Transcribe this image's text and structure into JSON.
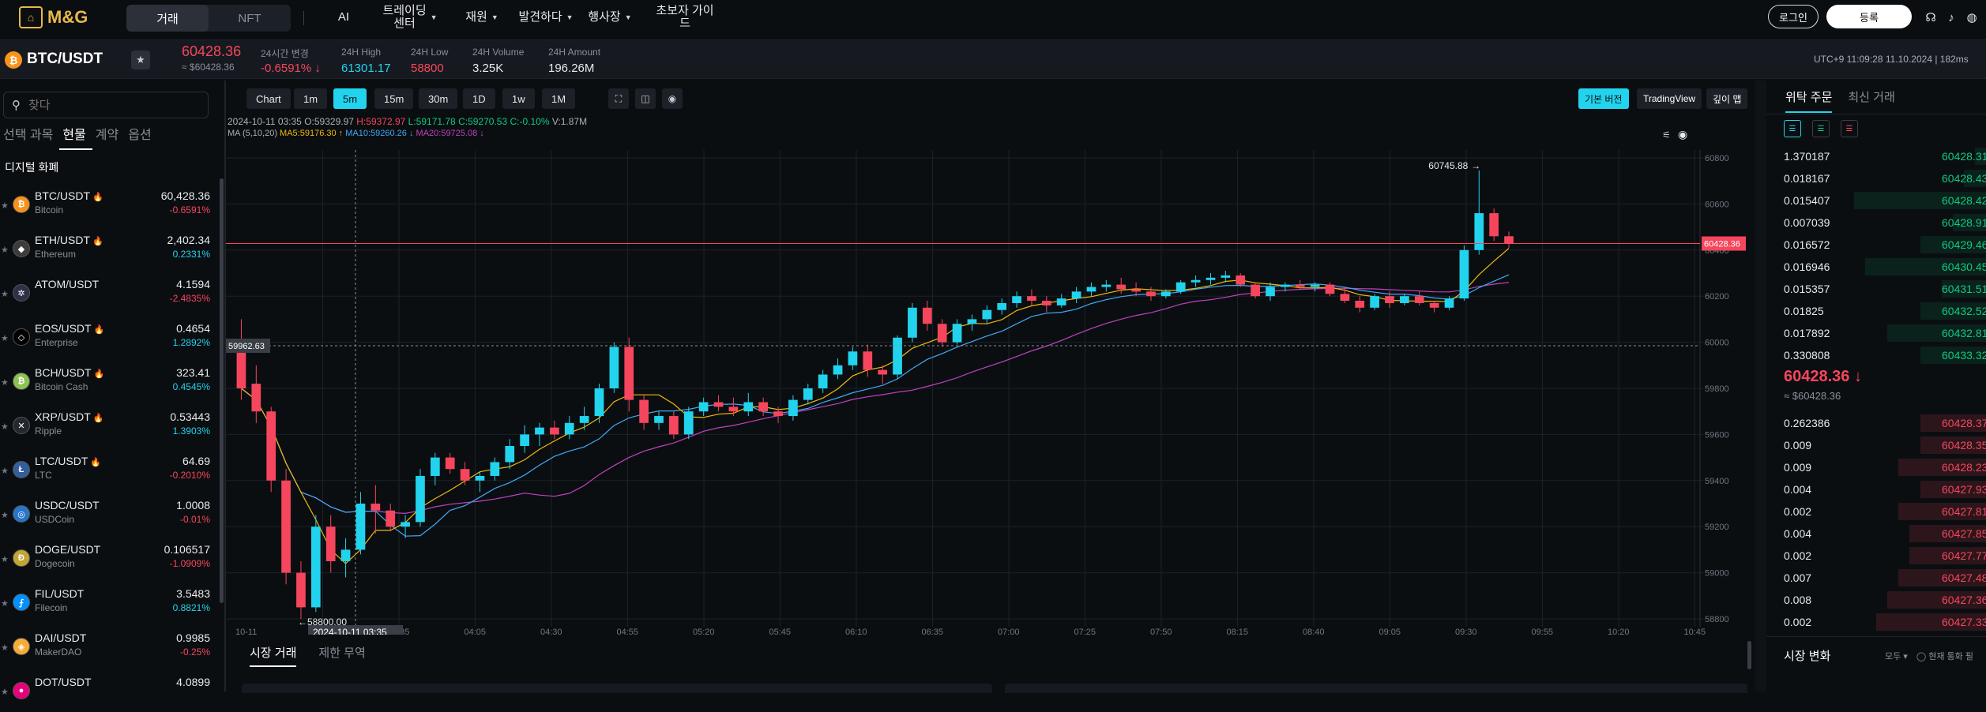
{
  "brand": {
    "name": "M&G"
  },
  "topnav": {
    "mode_tabs": [
      {
        "label": "거래"
      },
      {
        "label": "NFT"
      }
    ],
    "items": [
      {
        "label": "AI"
      },
      {
        "label": "트레이딩\n센터"
      },
      {
        "label": "재원"
      },
      {
        "label": "발견하다"
      },
      {
        "label": "행사장"
      },
      {
        "label": "초보자 가이\n드"
      }
    ],
    "login": "로그인",
    "register": "등록"
  },
  "ticker": {
    "pair": "BTC/USDT",
    "price": "60428.36",
    "price_usd": "≈ $60428.36",
    "stats": [
      {
        "label": "24시간 변경",
        "value": "-0.6591% ↓"
      },
      {
        "label": "24H High",
        "value": "61301.17"
      },
      {
        "label": "24H Low",
        "value": "58800"
      },
      {
        "label": "24H Volume",
        "value": "3.25K"
      },
      {
        "label": "24H Amount",
        "value": "196.26M"
      }
    ],
    "clock": "UTC+9 11:09:28 11.10.2024 | 182ms"
  },
  "sidebar": {
    "search_placeholder": "찾다",
    "tabs": [
      {
        "label": "선택 과목"
      },
      {
        "label": "현물"
      },
      {
        "label": "계약"
      },
      {
        "label": "옵션"
      }
    ],
    "section_title": "디지털 화폐",
    "coins": [
      {
        "pair": "BTC/USDT",
        "hot": true,
        "name": "Bitcoin",
        "price": "60,428.36",
        "change": "-0.6591%",
        "dir": "down",
        "color": "#f7931a",
        "glyph": "₿"
      },
      {
        "pair": "ETH/USDT",
        "hot": true,
        "name": "Ethereum",
        "price": "2,402.34",
        "change": "0.2331%",
        "dir": "up",
        "color": "#3c3c3d",
        "glyph": "◆"
      },
      {
        "pair": "ATOM/USDT",
        "hot": false,
        "name": "",
        "price": "4.1594",
        "change": "-2.4835%",
        "dir": "down",
        "color": "#2e3148",
        "glyph": "✲"
      },
      {
        "pair": "EOS/USDT",
        "hot": true,
        "name": "Enterprise",
        "price": "0.4654",
        "change": "1.2892%",
        "dir": "up",
        "color": "#000000",
        "glyph": "◇"
      },
      {
        "pair": "BCH/USDT",
        "hot": true,
        "name": "Bitcoin Cash",
        "price": "323.41",
        "change": "0.4545%",
        "dir": "up",
        "color": "#8dc351",
        "glyph": "₿"
      },
      {
        "pair": "XRP/USDT",
        "hot": true,
        "name": "Ripple",
        "price": "0.53443",
        "change": "1.3903%",
        "dir": "up",
        "color": "#23292f",
        "glyph": "✕"
      },
      {
        "pair": "LTC/USDT",
        "hot": true,
        "name": "LTC",
        "price": "64.69",
        "change": "-0.2010%",
        "dir": "down",
        "color": "#345d9d",
        "glyph": "Ł"
      },
      {
        "pair": "USDC/USDT",
        "hot": false,
        "name": "USDCoin",
        "price": "1.0008",
        "change": "-0.01%",
        "dir": "down",
        "color": "#2775ca",
        "glyph": "◎"
      },
      {
        "pair": "DOGE/USDT",
        "hot": false,
        "name": "Dogecoin",
        "price": "0.106517",
        "change": "-1.0909%",
        "dir": "down",
        "color": "#c2a633",
        "glyph": "Ð"
      },
      {
        "pair": "FIL/USDT",
        "hot": false,
        "name": "Filecoin",
        "price": "3.5483",
        "change": "0.8821%",
        "dir": "up",
        "color": "#0090ff",
        "glyph": "⨍"
      },
      {
        "pair": "DAI/USDT",
        "hot": false,
        "name": "MakerDAO",
        "price": "0.9985",
        "change": "-0.25%",
        "dir": "down",
        "color": "#f5ac37",
        "glyph": "◈"
      },
      {
        "pair": "DOT/USDT",
        "hot": false,
        "name": "",
        "price": "4.0899",
        "change": "",
        "dir": "down",
        "color": "#e6007a",
        "glyph": "●"
      }
    ]
  },
  "chart": {
    "toolbar": [
      {
        "label": "Chart"
      },
      {
        "label": "1m"
      },
      {
        "label": "5m",
        "active": true
      },
      {
        "label": "15m"
      },
      {
        "label": "30m"
      },
      {
        "label": "1D"
      },
      {
        "label": "1w"
      },
      {
        "label": "1M"
      }
    ],
    "right_tools": [
      {
        "label": "기본 버전",
        "active": true
      },
      {
        "label": "TradingView"
      },
      {
        "label": "깊이 맵"
      }
    ],
    "ohlc_legend": {
      "date": "2024-10-11 03:35",
      "o": "O:59329.97",
      "h": "H:59372.97",
      "l": "L:59171.78",
      "c": "C:59270.53",
      "chg": "C:-0.10%",
      "v": "V:1.87M"
    },
    "ma_legend": {
      "label": "MA (5,10,20)",
      "ma5": "MA5:59176.30 ↑",
      "ma10": "MA10:59260.26 ↓",
      "ma20": "MA20:59725.08 ↓"
    },
    "crosshair": {
      "price": "59962.63",
      "time": "2024-10-11  03:35"
    },
    "high_marker": "60745.88",
    "low_marker": "58800.00",
    "last_price_tag": "60428.36",
    "bottom_tabs": [
      {
        "label": "시장 거래"
      },
      {
        "label": "제한 무역"
      }
    ]
  },
  "chart_data": {
    "type": "candlestick",
    "title": "",
    "ylim": [
      58800,
      60800
    ],
    "y_ticks": [
      60800,
      60600,
      60400,
      60200,
      60000,
      59800,
      59600,
      59400,
      59200,
      59000,
      58800
    ],
    "x_ticks": [
      "10-11",
      "03:10",
      "03:35",
      "04:05",
      "04:30",
      "04:55",
      "05:20",
      "05:45",
      "06:10",
      "06:35",
      "07:00",
      "07:25",
      "07:50",
      "08:15",
      "08:40",
      "09:05",
      "09:30",
      "09:55",
      "10:20",
      "10:45"
    ],
    "candles": [
      [
        60000,
        60100,
        59750,
        59800
      ],
      [
        59820,
        59900,
        59650,
        59700
      ],
      [
        59700,
        59720,
        59350,
        59400
      ],
      [
        59400,
        59450,
        58950,
        59000
      ],
      [
        59000,
        59050,
        58800,
        58850
      ],
      [
        58850,
        59250,
        58830,
        59200
      ],
      [
        59200,
        59250,
        59000,
        59050
      ],
      [
        59050,
        59150,
        58980,
        59100
      ],
      [
        59100,
        59350,
        59080,
        59300
      ],
      [
        59300,
        59380,
        59170,
        59270
      ],
      [
        59270,
        59300,
        59180,
        59200
      ],
      [
        59200,
        59250,
        59150,
        59220
      ],
      [
        59220,
        59450,
        59200,
        59420
      ],
      [
        59420,
        59520,
        59380,
        59500
      ],
      [
        59500,
        59520,
        59430,
        59450
      ],
      [
        59450,
        59480,
        59380,
        59400
      ],
      [
        59400,
        59440,
        59350,
        59420
      ],
      [
        59420,
        59500,
        59400,
        59480
      ],
      [
        59480,
        59580,
        59450,
        59550
      ],
      [
        59550,
        59640,
        59520,
        59600
      ],
      [
        59600,
        59650,
        59550,
        59630
      ],
      [
        59630,
        59660,
        59580,
        59600
      ],
      [
        59600,
        59680,
        59580,
        59650
      ],
      [
        59650,
        59720,
        59620,
        59680
      ],
      [
        59680,
        59820,
        59650,
        59800
      ],
      [
        59800,
        60000,
        59780,
        59980
      ],
      [
        59980,
        60020,
        59700,
        59750
      ],
      [
        59750,
        59770,
        59620,
        59650
      ],
      [
        59650,
        59700,
        59620,
        59680
      ],
      [
        59680,
        59700,
        59580,
        59600
      ],
      [
        59600,
        59720,
        59580,
        59700
      ],
      [
        59700,
        59760,
        59680,
        59740
      ],
      [
        59740,
        59770,
        59700,
        59720
      ],
      [
        59720,
        59760,
        59680,
        59700
      ],
      [
        59700,
        59780,
        59680,
        59740
      ],
      [
        59740,
        59760,
        59680,
        59700
      ],
      [
        59700,
        59720,
        59650,
        59680
      ],
      [
        59680,
        59770,
        59660,
        59750
      ],
      [
        59750,
        59820,
        59730,
        59800
      ],
      [
        59800,
        59880,
        59780,
        59860
      ],
      [
        59860,
        59930,
        59840,
        59900
      ],
      [
        59900,
        59980,
        59880,
        59960
      ],
      [
        59960,
        59990,
        59850,
        59880
      ],
      [
        59880,
        59900,
        59820,
        59860
      ],
      [
        59860,
        60030,
        59840,
        60020
      ],
      [
        60020,
        60170,
        60000,
        60150
      ],
      [
        60150,
        60180,
        60050,
        60080
      ],
      [
        60080,
        60100,
        59980,
        60000
      ],
      [
        60000,
        60100,
        59990,
        60080
      ],
      [
        60080,
        60120,
        60050,
        60100
      ],
      [
        60100,
        60160,
        60080,
        60140
      ],
      [
        60140,
        60190,
        60120,
        60170
      ],
      [
        60170,
        60220,
        60150,
        60200
      ],
      [
        60200,
        60230,
        60160,
        60180
      ],
      [
        60180,
        60200,
        60130,
        60160
      ],
      [
        60160,
        60210,
        60150,
        60190
      ],
      [
        60190,
        60240,
        60170,
        60220
      ],
      [
        60220,
        60260,
        60200,
        60240
      ],
      [
        60240,
        60270,
        60220,
        60250
      ],
      [
        60250,
        60280,
        60210,
        60230
      ],
      [
        60230,
        60260,
        60200,
        60220
      ],
      [
        60220,
        60240,
        60180,
        60200
      ],
      [
        60200,
        60230,
        60190,
        60220
      ],
      [
        60220,
        60270,
        60210,
        60260
      ],
      [
        60260,
        60290,
        60240,
        60270
      ],
      [
        60270,
        60300,
        60250,
        60280
      ],
      [
        60280,
        60310,
        60260,
        60290
      ],
      [
        60290,
        60300,
        60240,
        60250
      ],
      [
        60250,
        60260,
        60190,
        60200
      ],
      [
        60200,
        60260,
        60180,
        60240
      ],
      [
        60240,
        60260,
        60220,
        60250
      ],
      [
        60250,
        60270,
        60230,
        60240
      ],
      [
        60240,
        60260,
        60220,
        60250
      ],
      [
        60250,
        60260,
        60200,
        60210
      ],
      [
        60210,
        60240,
        60170,
        60180
      ],
      [
        60180,
        60200,
        60130,
        60150
      ],
      [
        60150,
        60210,
        60140,
        60200
      ],
      [
        60200,
        60220,
        60150,
        60170
      ],
      [
        60170,
        60210,
        60160,
        60200
      ],
      [
        60200,
        60220,
        60160,
        60170
      ],
      [
        60170,
        60180,
        60130,
        60150
      ],
      [
        60150,
        60200,
        60140,
        60190
      ],
      [
        60190,
        60420,
        60180,
        60400
      ],
      [
        60400,
        60746,
        60380,
        60560
      ],
      [
        60560,
        60580,
        60440,
        60460
      ],
      [
        60460,
        60480,
        60410,
        60428.36
      ]
    ]
  },
  "orderbook": {
    "tabs": [
      {
        "label": "위탁 주문"
      },
      {
        "label": "최신 거래"
      }
    ],
    "asks": [
      {
        "qty": "1.370187",
        "price": "60428.31",
        "depth": 0.05
      },
      {
        "qty": "0.018167",
        "price": "60428.43",
        "depth": 0.1
      },
      {
        "qty": "0.015407",
        "price": "60428.42",
        "depth": 0.6
      },
      {
        "qty": "0.007039",
        "price": "60428.91",
        "depth": 0.15
      },
      {
        "qty": "0.016572",
        "price": "60429.46",
        "depth": 0.3
      },
      {
        "qty": "0.016946",
        "price": "60430.45",
        "depth": 0.55
      },
      {
        "qty": "0.015357",
        "price": "60431.51",
        "depth": 0.2
      },
      {
        "qty": "0.01825",
        "price": "60432.52",
        "depth": 0.3
      },
      {
        "qty": "0.017892",
        "price": "60432.81",
        "depth": 0.45
      },
      {
        "qty": "0.330808",
        "price": "60433.32",
        "depth": 0.3
      }
    ],
    "mid_price": "60428.36 ↓",
    "mid_usd": "≈ $60428.36",
    "bids": [
      {
        "qty": "0.262386",
        "price": "60428.37",
        "depth": 0.3
      },
      {
        "qty": "0.009",
        "price": "60428.35",
        "depth": 0.3
      },
      {
        "qty": "0.009",
        "price": "60428.23",
        "depth": 0.4
      },
      {
        "qty": "0.004",
        "price": "60427.93",
        "depth": 0.3
      },
      {
        "qty": "0.002",
        "price": "60427.81",
        "depth": 0.4
      },
      {
        "qty": "0.004",
        "price": "60427.85",
        "depth": 0.35
      },
      {
        "qty": "0.002",
        "price": "60427.77",
        "depth": 0.35
      },
      {
        "qty": "0.007",
        "price": "60427.48",
        "depth": 0.4
      },
      {
        "qty": "0.008",
        "price": "60427.36",
        "depth": 0.45
      },
      {
        "qty": "0.002",
        "price": "60427.33",
        "depth": 0.5
      }
    ],
    "market_change": "시장 변화",
    "market_option": "모두 ▾",
    "market_check": "현재 통화 필"
  },
  "colors": {
    "up": "#22d3ee",
    "down": "#f6465d",
    "ma5": "#f0b90b",
    "ma10": "#3fa9f5",
    "ma20": "#c042c0"
  }
}
